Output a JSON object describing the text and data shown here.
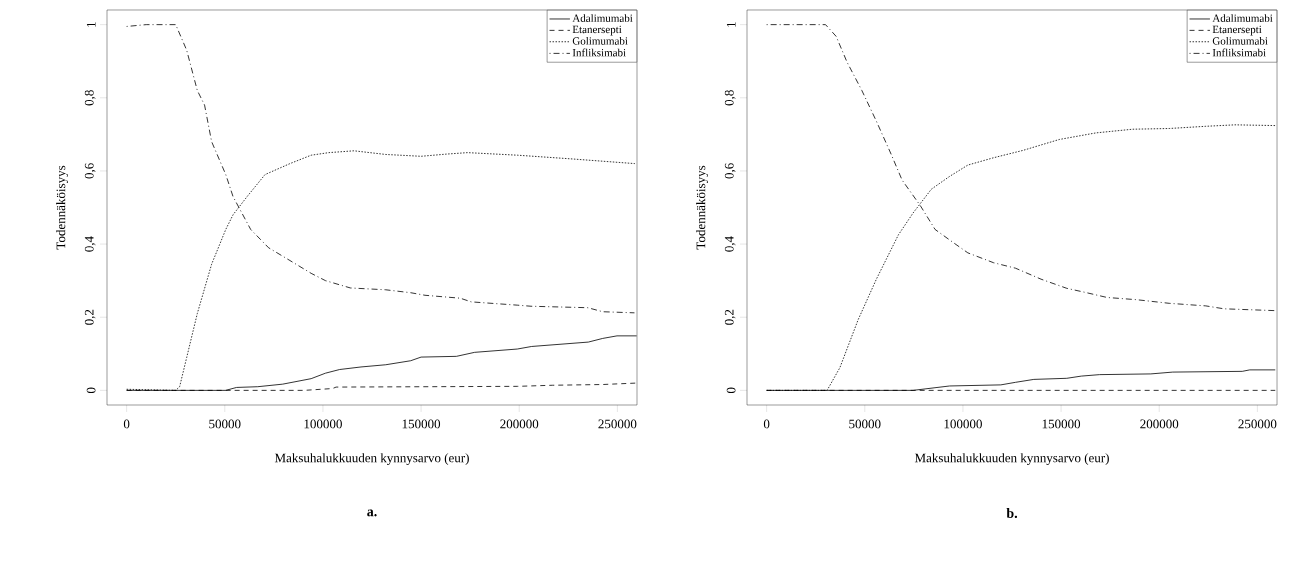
{
  "chart_data": [
    {
      "type": "line",
      "title": "a.",
      "xlabel": "Maksuhalukkuuden kynnysarvo (eur)",
      "ylabel": "Todennäköisyys",
      "legend": "top right",
      "xlim": [
        -10000,
        260000
      ],
      "ylim": [
        -0.04,
        1.04
      ],
      "xticks": [
        0,
        50000,
        100000,
        150000,
        200000,
        250000
      ],
      "yticks": [
        0,
        {
          "value": 0.2,
          "label": "0,2"
        },
        {
          "value": 0.4,
          "label": "0,4"
        },
        {
          "value": 0.6,
          "label": "0,6"
        },
        {
          "value": 0.8,
          "label": "0,8"
        },
        1
      ],
      "series": [
        {
          "name": "Adalimumabi",
          "color": "#000000",
          "line_style": "solid",
          "x": [
            0,
            50500,
            56000,
            66800,
            79500,
            94000,
            101300,
            108500,
            119400,
            132000,
            144700,
            150000,
            168000,
            177300,
            199000,
            206300,
            235200,
            242500,
            249800,
            259800
          ],
          "values": [
            0,
            0,
            0.008,
            0.01,
            0.017,
            0.032,
            0.047,
            0.057,
            0.064,
            0.07,
            0.081,
            0.091,
            0.093,
            0.104,
            0.113,
            0.12,
            0.132,
            0.142,
            0.149,
            0.149
          ]
        },
        {
          "name": "Etanersepti",
          "color": "#000000",
          "line_style": "dashed",
          "x": [
            0,
            90400,
            104900,
            106700,
            199100,
            217000,
            242500,
            259800
          ],
          "values": [
            0,
            0,
            0.005,
            0.009,
            0.011,
            0.014,
            0.016,
            0.02
          ]
        },
        {
          "name": "Golimumabi",
          "color": "#000000",
          "line_style": "dotted",
          "x": [
            0,
            25000,
            27000,
            30600,
            36000,
            43300,
            50500,
            54200,
            61400,
            70500,
            83200,
            94000,
            103000,
            115800,
            132000,
            150000,
            162900,
            173700,
            199100,
            226300,
            258900
          ],
          "values": [
            0.003,
            0,
            0.01,
            0.09,
            0.21,
            0.345,
            0.44,
            0.48,
            0.53,
            0.59,
            0.62,
            0.643,
            0.65,
            0.655,
            0.645,
            0.64,
            0.646,
            0.65,
            0.643,
            0.633,
            0.62
          ]
        },
        {
          "name": "Infliksimabi",
          "color": "#000000",
          "line_style": "dashdot",
          "x": [
            0,
            10000,
            25000,
            30600,
            36000,
            39700,
            43300,
            50500,
            54200,
            63200,
            72300,
            83200,
            94000,
            101300,
            114000,
            132000,
            144700,
            152000,
            170000,
            175500,
            199000,
            206000,
            235000,
            242500,
            258700
          ],
          "values": [
            0.995,
            1,
            1,
            0.93,
            0.82,
            0.78,
            0.68,
            0.59,
            0.53,
            0.44,
            0.39,
            0.355,
            0.32,
            0.3,
            0.28,
            0.275,
            0.267,
            0.26,
            0.252,
            0.242,
            0.233,
            0.23,
            0.226,
            0.215,
            0.212
          ]
        }
      ]
    },
    {
      "type": "line",
      "title": "b.",
      "xlabel": "Maksuhalukkuuden kynnysarvo (eur)",
      "ylabel": "Todennäköisyys",
      "legend": "top right",
      "xlim": [
        -10000,
        260000
      ],
      "ylim": [
        -0.04,
        1.04
      ],
      "xticks": [
        0,
        50000,
        100000,
        150000,
        200000,
        250000
      ],
      "yticks": [
        0,
        {
          "value": 0.2,
          "label": "0,2"
        },
        {
          "value": 0.4,
          "label": "0,4"
        },
        {
          "value": 0.6,
          "label": "0,6"
        },
        {
          "value": 0.8,
          "label": "0,8"
        },
        1
      ],
      "series": [
        {
          "name": "Adalimumabi",
          "color": "#000000",
          "line_style": "solid",
          "x": [
            0,
            74600,
            93200,
            119300,
            126800,
            136100,
            152900,
            160300,
            169600,
            195700,
            206900,
            242300,
            246100,
            259100
          ],
          "values": [
            0,
            0,
            0.012,
            0.015,
            0.022,
            0.03,
            0.033,
            0.039,
            0.043,
            0.045,
            0.05,
            0.052,
            0.056,
            0.056
          ]
        },
        {
          "name": "Etanersepti",
          "color": "#000000",
          "line_style": "dashed",
          "x": [
            0,
            259100
          ],
          "values": [
            0,
            0
          ]
        },
        {
          "name": "Golimumabi",
          "color": "#000000",
          "line_style": "dotted",
          "x": [
            0,
            30800,
            37300,
            46600,
            55900,
            67100,
            74600,
            83900,
            93200,
            102500,
            115600,
            130500,
            149100,
            167800,
            186400,
            205100,
            223700,
            238600,
            259100
          ],
          "values": [
            0,
            0,
            0.062,
            0.193,
            0.304,
            0.425,
            0.485,
            0.55,
            0.585,
            0.616,
            0.636,
            0.656,
            0.686,
            0.704,
            0.714,
            0.716,
            0.722,
            0.726,
            0.724
          ]
        },
        {
          "name": "Infliksimabi",
          "color": "#000000",
          "line_style": "dashdot",
          "x": [
            0,
            30000,
            35400,
            41000,
            48500,
            55900,
            63400,
            69000,
            78300,
            85800,
            95100,
            102500,
            115600,
            126800,
            139800,
            152900,
            162200,
            173400,
            188300,
            205100,
            223700,
            233000,
            259100
          ],
          "values": [
            1,
            1,
            0.968,
            0.897,
            0.82,
            0.736,
            0.646,
            0.575,
            0.505,
            0.44,
            0.404,
            0.376,
            0.349,
            0.334,
            0.304,
            0.279,
            0.268,
            0.254,
            0.248,
            0.238,
            0.231,
            0.223,
            0.218
          ]
        }
      ]
    }
  ]
}
